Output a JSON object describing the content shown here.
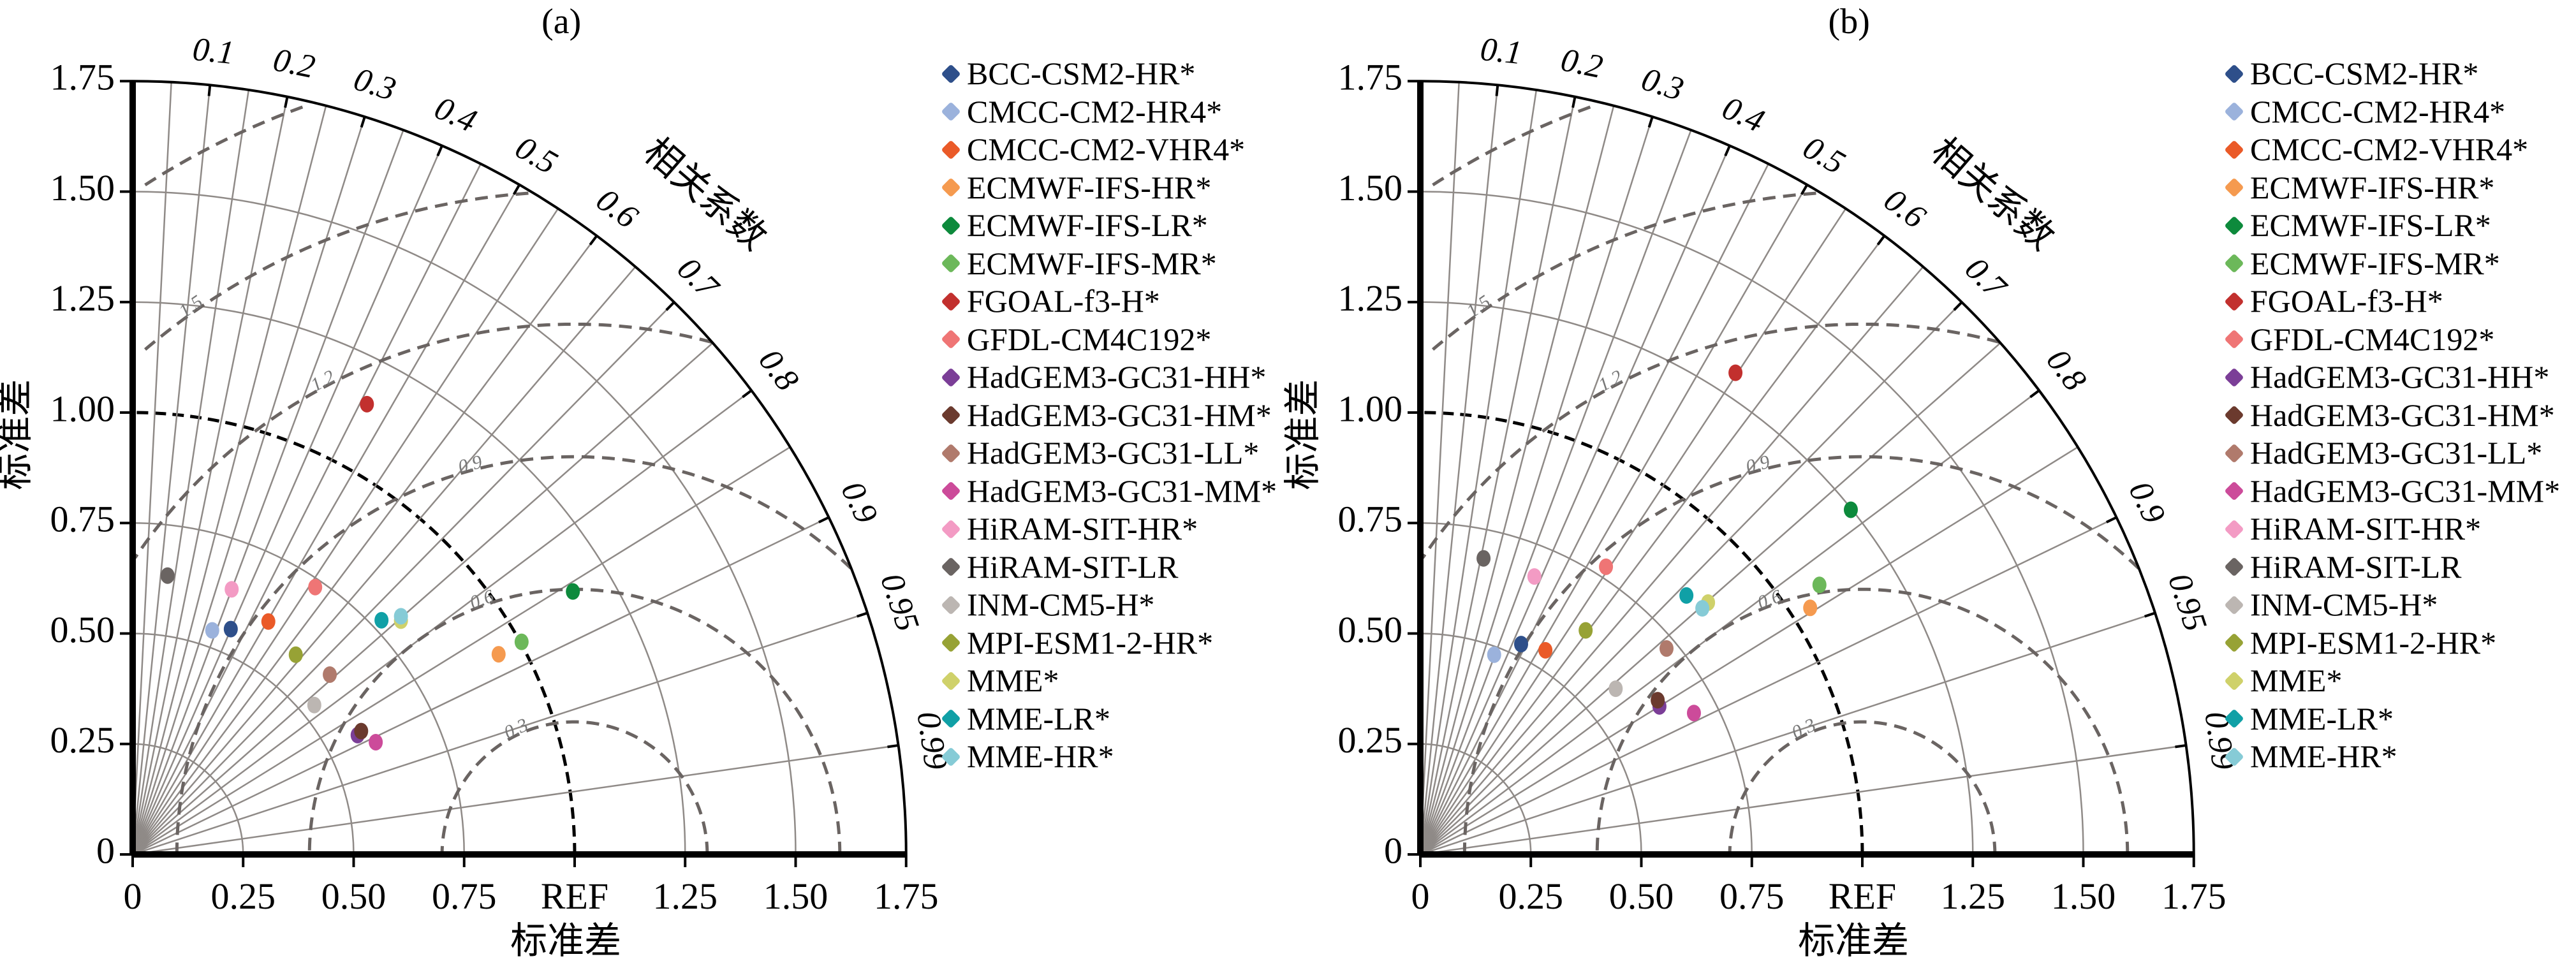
{
  "chart_data": [
    {
      "type": "scatter",
      "subtype": "taylor-diagram",
      "title": "(a)",
      "xlabel": "标准差",
      "ylabel": "标准差",
      "corr_label": "相关系数",
      "std_ticks": [
        "0",
        "0.25",
        "0.50",
        "0.75",
        "REF",
        "1.25",
        "1.50",
        "1.75"
      ],
      "y_ticks": [
        "0",
        "0.25",
        "0.50",
        "0.75",
        "1.00",
        "1.25",
        "1.50",
        "1.75"
      ],
      "std_range": [
        0,
        1.75
      ],
      "corr_ticks": [
        "0.1",
        "0.2",
        "0.3",
        "0.4",
        "0.5",
        "0.6",
        "0.7",
        "0.8",
        "0.9",
        "0.95",
        "0.99"
      ],
      "rms_contours": [
        "0.3",
        "0.6",
        "0.9",
        "1.2",
        "1.5",
        "1.8"
      ],
      "ref_std": 1.0,
      "series": [
        {
          "name": "BCC-CSM2-HR*",
          "color": "#2e4f8a",
          "x": 0.222,
          "y": 0.51
        },
        {
          "name": "CMCC-CM2-HR4*",
          "color": "#9bb2dc",
          "x": 0.18,
          "y": 0.507
        },
        {
          "name": "CMCC-CM2-VHR4*",
          "color": "#ea5a28",
          "x": 0.307,
          "y": 0.527
        },
        {
          "name": "ECMWF-IFS-HR*",
          "color": "#f59a4f",
          "x": 0.828,
          "y": 0.453
        },
        {
          "name": "ECMWF-IFS-LR*",
          "color": "#0d8a3c",
          "x": 0.996,
          "y": 0.595
        },
        {
          "name": "ECMWF-IFS-MR*",
          "color": "#6cb85a",
          "x": 0.88,
          "y": 0.481
        },
        {
          "name": "FGOAL-f3-H*",
          "color": "#c2302e",
          "x": 0.53,
          "y": 1.019
        },
        {
          "name": "GFDL-CM4C192*",
          "color": "#ef7575",
          "x": 0.413,
          "y": 0.605
        },
        {
          "name": "HadGEM3-GC31-HH*",
          "color": "#7b3e97",
          "x": 0.509,
          "y": 0.27
        },
        {
          "name": "HadGEM3-GC31-HM*",
          "color": "#6b3a2e",
          "x": 0.517,
          "y": 0.279
        },
        {
          "name": "HadGEM3-GC31-LL*",
          "color": "#b07a6c",
          "x": 0.446,
          "y": 0.407
        },
        {
          "name": "HadGEM3-GC31-MM*",
          "color": "#cc4b9a",
          "x": 0.55,
          "y": 0.254
        },
        {
          "name": "HiRAM-SIT-HR*",
          "color": "#f39bc4",
          "x": 0.224,
          "y": 0.6
        },
        {
          "name": "HiRAM-SIT-LR",
          "color": "#6a6462",
          "x": 0.079,
          "y": 0.631
        },
        {
          "name": "INM-CM5-H*",
          "color": "#bcb6b2",
          "x": 0.411,
          "y": 0.338
        },
        {
          "name": "MPI-ESM1-2-HR*",
          "color": "#97a235",
          "x": 0.369,
          "y": 0.452
        },
        {
          "name": "MME*",
          "color": "#cfd16a",
          "x": 0.607,
          "y": 0.529
        },
        {
          "name": "MME-LR*",
          "color": "#10a0a6",
          "x": 0.563,
          "y": 0.53
        },
        {
          "name": "MME-HR*",
          "color": "#86cbd6",
          "x": 0.607,
          "y": 0.539
        }
      ]
    },
    {
      "type": "scatter",
      "subtype": "taylor-diagram",
      "title": "(b)",
      "xlabel": "标准差",
      "ylabel": "标准差",
      "corr_label": "相关系数",
      "std_ticks": [
        "0",
        "0.25",
        "0.50",
        "0.75",
        "REF",
        "1.25",
        "1.50",
        "1.75"
      ],
      "y_ticks": [
        "0",
        "0.25",
        "0.50",
        "0.75",
        "1.00",
        "1.25",
        "1.50",
        "1.75"
      ],
      "std_range": [
        0,
        1.75
      ],
      "corr_ticks": [
        "0.1",
        "0.2",
        "0.3",
        "0.4",
        "0.5",
        "0.6",
        "0.7",
        "0.8",
        "0.9",
        "0.95",
        "0.99"
      ],
      "rms_contours": [
        "0.3",
        "0.6",
        "0.9",
        "1.2",
        "1.5",
        "1.8"
      ],
      "ref_std": 1.0,
      "series": [
        {
          "name": "BCC-CSM2-HR*",
          "color": "#2e4f8a",
          "x": 0.228,
          "y": 0.476
        },
        {
          "name": "CMCC-CM2-HR4*",
          "color": "#9bb2dc",
          "x": 0.167,
          "y": 0.452
        },
        {
          "name": "CMCC-CM2-VHR4*",
          "color": "#ea5a28",
          "x": 0.283,
          "y": 0.462
        },
        {
          "name": "ECMWF-IFS-HR*",
          "color": "#f59a4f",
          "x": 0.882,
          "y": 0.558
        },
        {
          "name": "ECMWF-IFS-LR*",
          "color": "#0d8a3c",
          "x": 0.974,
          "y": 0.78
        },
        {
          "name": "ECMWF-IFS-MR*",
          "color": "#6cb85a",
          "x": 0.903,
          "y": 0.61
        },
        {
          "name": "FGOAL-f3-H*",
          "color": "#c2302e",
          "x": 0.713,
          "y": 1.09
        },
        {
          "name": "GFDL-CM4C192*",
          "color": "#ef7575",
          "x": 0.42,
          "y": 0.651
        },
        {
          "name": "HadGEM3-GC31-HH*",
          "color": "#7b3e97",
          "x": 0.541,
          "y": 0.335
        },
        {
          "name": "HadGEM3-GC31-HM*",
          "color": "#6b3a2e",
          "x": 0.537,
          "y": 0.349
        },
        {
          "name": "HadGEM3-GC31-LL*",
          "color": "#b07a6c",
          "x": 0.557,
          "y": 0.466
        },
        {
          "name": "HadGEM3-GC31-MM*",
          "color": "#cc4b9a",
          "x": 0.619,
          "y": 0.32
        },
        {
          "name": "HiRAM-SIT-HR*",
          "color": "#f39bc4",
          "x": 0.258,
          "y": 0.629
        },
        {
          "name": "HiRAM-SIT-LR",
          "color": "#6a6462",
          "x": 0.143,
          "y": 0.67
        },
        {
          "name": "INM-CM5-H*",
          "color": "#bcb6b2",
          "x": 0.442,
          "y": 0.375
        },
        {
          "name": "MPI-ESM1-2-HR*",
          "color": "#97a235",
          "x": 0.374,
          "y": 0.507
        },
        {
          "name": "MME*",
          "color": "#cfd16a",
          "x": 0.651,
          "y": 0.57
        },
        {
          "name": "MME-LR*",
          "color": "#10a0a6",
          "x": 0.602,
          "y": 0.586
        },
        {
          "name": "MME-HR*",
          "color": "#86cbd6",
          "x": 0.638,
          "y": 0.557
        }
      ]
    }
  ]
}
